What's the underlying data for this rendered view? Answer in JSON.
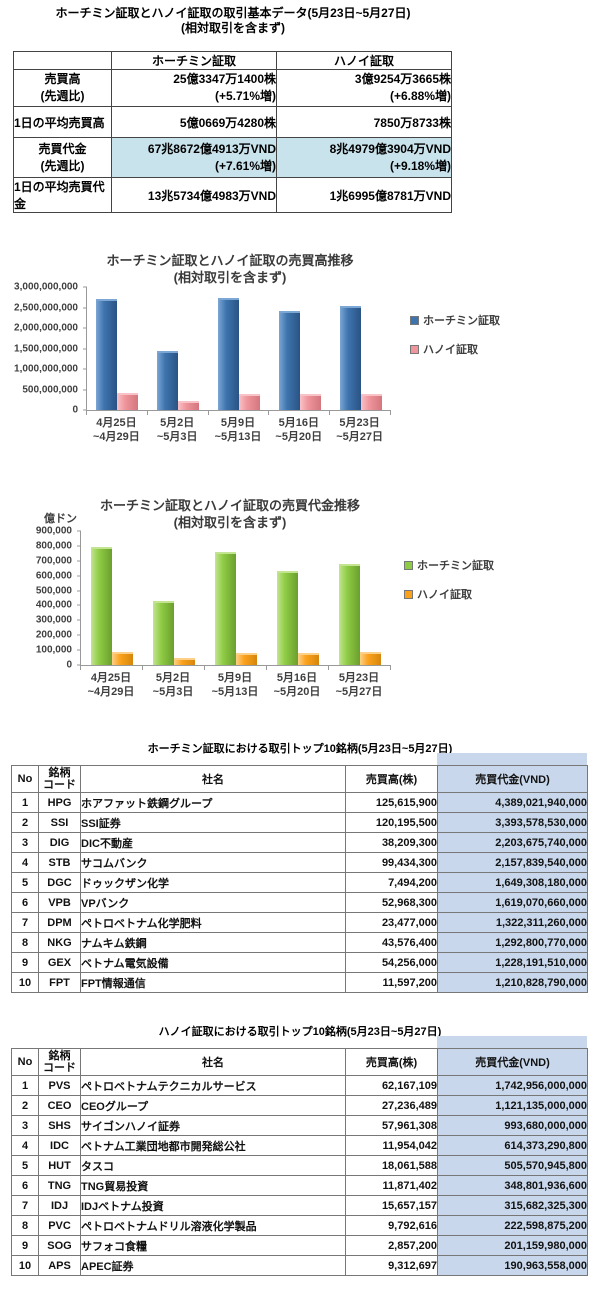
{
  "colors": {
    "highlight_cyan": "#C9E3EC",
    "value_col_blue": "#C8D7EB",
    "hcm_volume_bar": "#3E74AE",
    "hanoi_volume_bar": "#EF959C",
    "hcm_value_bar": "#8FCC45",
    "hanoi_value_bar": "#FBA21C"
  },
  "doc": {
    "title_line1": "ホーチミン証取とハノイ証取の取引基本データ(5月23日~5月27日)",
    "title_line2": "(相対取引を含まず)"
  },
  "summary_table": {
    "col_headers": [
      "ホーチミン証取",
      "ハノイ証取"
    ],
    "rows": [
      {
        "label": [
          "売買高",
          "(先週比)"
        ],
        "hcm": [
          "25億3347万1400株",
          "(+5.71%増)"
        ],
        "hanoi": [
          "3億9254万3665株",
          "(+6.88%増)"
        ]
      },
      {
        "label": [
          "1日の平均売買高"
        ],
        "hcm": [
          "5億0669万4280株"
        ],
        "hanoi": [
          "7850万8733株"
        ]
      },
      {
        "label": [
          "売買代金",
          "(先週比)"
        ],
        "hcm": [
          "67兆8672億4913万VND",
          "(+7.61%増)"
        ],
        "hanoi": [
          "8兆4979億3904万VND",
          "(+9.18%増)"
        ]
      },
      {
        "label": [
          "1日の平均売買代金"
        ],
        "hcm": [
          "13兆5734億4983万VND"
        ],
        "hanoi": [
          "1兆6995億8781万VND"
        ]
      }
    ]
  },
  "chart_data": [
    {
      "type": "bar",
      "title": "ホーチミン証取とハノイ証取の売買高推移",
      "subtitle": "(相対取引を含まず)",
      "ylabel": "",
      "xlabel": "",
      "ylim": [
        0,
        3000000000
      ],
      "ytick_interval": 500000000,
      "yticks": [
        "3,000,000,000",
        "2,500,000,000",
        "2,000,000,000",
        "1,500,000,000",
        "1,000,000,000",
        "500,000,000",
        "0"
      ],
      "grid": false,
      "legend_position": "right",
      "categories": [
        [
          "4月25日",
          "~4月29日"
        ],
        [
          "5月2日",
          "~5月3日"
        ],
        [
          "5月9日",
          "~5月13日"
        ],
        [
          "5月16日",
          "~5月20日"
        ],
        [
          "5月23日",
          "~5月27日"
        ]
      ],
      "series": [
        {
          "key": "hcm",
          "name": "ホーチミン証取",
          "color": "#3E74AE",
          "color_light": "#7CA6D4",
          "color_dark": "#2A5384",
          "values": [
            2700000000,
            1450000000,
            2730000000,
            2410000000,
            2530000000
          ]
        },
        {
          "key": "hanoi",
          "name": "ハノイ証取",
          "color": "#EF959C",
          "color_light": "#F8C3C7",
          "color_dark": "#D4767E",
          "values": [
            410000000,
            210000000,
            400000000,
            385000000,
            395000000
          ]
        }
      ]
    },
    {
      "type": "bar",
      "title": "ホーチミン証取とハノイ証取の売買代金推移",
      "subtitle": "(相対取引を含まず)",
      "ylabel": "億ドン",
      "xlabel": "",
      "ylim": [
        0,
        900000
      ],
      "ytick_interval": 100000,
      "yticks": [
        "900,000",
        "800,000",
        "700,000",
        "600,000",
        "500,000",
        "400,000",
        "300,000",
        "200,000",
        "100,000",
        "0"
      ],
      "grid": false,
      "legend_position": "right",
      "categories": [
        [
          "4月25日",
          "~4月29日"
        ],
        [
          "5月2日",
          "~5月3日"
        ],
        [
          "5月9日",
          "~5月13日"
        ],
        [
          "5月16日",
          "~5月20日"
        ],
        [
          "5月23日",
          "~5月27日"
        ]
      ],
      "series": [
        {
          "key": "hcm",
          "name": "ホーチミン証取",
          "color": "#8FCC45",
          "color_light": "#C3E591",
          "color_dark": "#6B9F2E",
          "values": [
            795000,
            430000,
            762000,
            632000,
            679000
          ]
        },
        {
          "key": "hanoi",
          "name": "ハノイ証取",
          "color": "#FBA21C",
          "color_light": "#FDD089",
          "color_dark": "#D6860D",
          "values": [
            86000,
            45000,
            79000,
            78000,
            85000
          ]
        }
      ]
    }
  ],
  "hcm_table": {
    "title": "ホーチミン証取における取引トップ10銘柄(5月23日~5月27日)",
    "headers": {
      "no": "No",
      "code": "銘柄\nコード",
      "name": "社名",
      "volume": "売買高(株)",
      "value": "売買代金(VND)"
    },
    "rows": [
      {
        "no": "1",
        "code": "HPG",
        "name": "ホアファット鉄鋼グループ",
        "volume": "125,615,900",
        "value": "4,389,021,940,000"
      },
      {
        "no": "2",
        "code": "SSI",
        "name": "SSI証券",
        "volume": "120,195,500",
        "value": "3,393,578,530,000"
      },
      {
        "no": "3",
        "code": "DIG",
        "name": "DIC不動産",
        "volume": "38,209,300",
        "value": "2,203,675,740,000"
      },
      {
        "no": "4",
        "code": "STB",
        "name": "サコムバンク",
        "volume": "99,434,300",
        "value": "2,157,839,540,000"
      },
      {
        "no": "5",
        "code": "DGC",
        "name": "ドゥックザン化学",
        "volume": "7,494,200",
        "value": "1,649,308,180,000"
      },
      {
        "no": "6",
        "code": "VPB",
        "name": "VPバンク",
        "volume": "52,968,300",
        "value": "1,619,070,660,000"
      },
      {
        "no": "7",
        "code": "DPM",
        "name": "ペトロベトナム化学肥料",
        "volume": "23,477,000",
        "value": "1,322,311,260,000"
      },
      {
        "no": "8",
        "code": "NKG",
        "name": "ナムキム鉄鋼",
        "volume": "43,576,400",
        "value": "1,292,800,770,000"
      },
      {
        "no": "9",
        "code": "GEX",
        "name": "ベトナム電気設備",
        "volume": "54,256,000",
        "value": "1,228,191,510,000"
      },
      {
        "no": "10",
        "code": "FPT",
        "name": "FPT情報通信",
        "volume": "11,597,200",
        "value": "1,210,828,790,000"
      }
    ]
  },
  "hanoi_table": {
    "title": "ハノイ証取における取引トップ10銘柄(5月23日~5月27日)",
    "headers": {
      "no": "No",
      "code": "銘柄\nコード",
      "name": "社名",
      "volume": "売買高(株)",
      "value": "売買代金(VND)"
    },
    "rows": [
      {
        "no": "1",
        "code": "PVS",
        "name": "ペトロベトナムテクニカルサービス",
        "volume": "62,167,109",
        "value": "1,742,956,000,000"
      },
      {
        "no": "2",
        "code": "CEO",
        "name": "CEOグループ",
        "volume": "27,236,489",
        "value": "1,121,135,000,000"
      },
      {
        "no": "3",
        "code": "SHS",
        "name": "サイゴンハノイ証券",
        "volume": "57,961,308",
        "value": "993,680,000,000"
      },
      {
        "no": "4",
        "code": "IDC",
        "name": "ベトナム工業団地都市開発総公社",
        "volume": "11,954,042",
        "value": "614,373,290,800"
      },
      {
        "no": "5",
        "code": "HUT",
        "name": "タスコ",
        "volume": "18,061,588",
        "value": "505,570,945,800"
      },
      {
        "no": "6",
        "code": "TNG",
        "name": "TNG貿易投資",
        "volume": "11,871,402",
        "value": "348,801,936,600"
      },
      {
        "no": "7",
        "code": "IDJ",
        "name": "IDJベトナム投資",
        "volume": "15,657,157",
        "value": "315,682,325,300"
      },
      {
        "no": "8",
        "code": "PVC",
        "name": "ペトロベトナムドリル溶液化学製品",
        "volume": "9,792,616",
        "value": "222,598,875,200"
      },
      {
        "no": "9",
        "code": "SOG",
        "name": "サフォコ食糧",
        "volume": "2,857,200",
        "value": "201,159,980,000"
      },
      {
        "no": "10",
        "code": "APS",
        "name": "APEC証券",
        "volume": "9,312,697",
        "value": "190,963,558,000"
      }
    ]
  }
}
